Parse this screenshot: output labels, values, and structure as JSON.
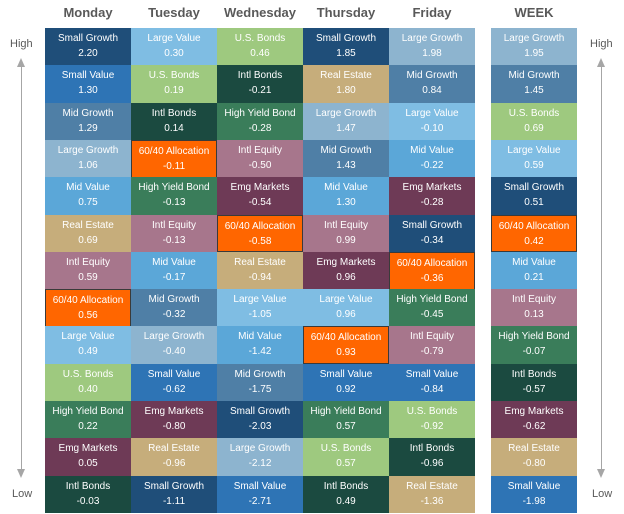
{
  "chart_data": {
    "type": "table",
    "columns": [
      "Monday",
      "Tuesday",
      "Wednesday",
      "Thursday",
      "Friday",
      "WEEK"
    ],
    "axis_labels": {
      "top": "High",
      "bottom": "Low"
    },
    "colors": {
      "Small Growth": "#1f4e79",
      "Small Value": "#2e74b5",
      "Mid Growth": "#4f7fa6",
      "Mid Value": "#5ba7d8",
      "Large Growth": "#8db4cf",
      "Large Value": "#7fbde3",
      "U.S. Bonds": "#9ec97f",
      "Intl Bonds": "#1b4a40",
      "High Yield Bond": "#3a7d5a",
      "Real Estate": "#c6ad7b",
      "Intl Equity": "#a7768c",
      "Emg Markets": "#6e3a56",
      "60/40 Allocation": "#ff6600"
    },
    "data": [
      [
        {
          "name": "Small Growth",
          "value": "2.20"
        },
        {
          "name": "Small Value",
          "value": "1.30"
        },
        {
          "name": "Mid Growth",
          "value": "1.29"
        },
        {
          "name": "Large Growth",
          "value": "1.06"
        },
        {
          "name": "Mid Value",
          "value": "0.75"
        },
        {
          "name": "Real Estate",
          "value": "0.69"
        },
        {
          "name": "Intl Equity",
          "value": "0.59"
        },
        {
          "name": "60/40 Allocation",
          "value": "0.56"
        },
        {
          "name": "Large Value",
          "value": "0.49"
        },
        {
          "name": "U.S. Bonds",
          "value": "0.40"
        },
        {
          "name": "High Yield Bond",
          "value": "0.22"
        },
        {
          "name": "Emg Markets",
          "value": "0.05"
        },
        {
          "name": "Intl Bonds",
          "value": "-0.03"
        }
      ],
      [
        {
          "name": "Large Value",
          "value": "0.30"
        },
        {
          "name": "U.S. Bonds",
          "value": "0.19"
        },
        {
          "name": "Intl Bonds",
          "value": "0.14"
        },
        {
          "name": "60/40 Allocation",
          "value": "-0.11"
        },
        {
          "name": "High Yield Bond",
          "value": "-0.13"
        },
        {
          "name": "Intl Equity",
          "value": "-0.13"
        },
        {
          "name": "Mid Value",
          "value": "-0.17"
        },
        {
          "name": "Mid Growth",
          "value": "-0.32"
        },
        {
          "name": "Large Growth",
          "value": "-0.40"
        },
        {
          "name": "Small Value",
          "value": "-0.62"
        },
        {
          "name": "Emg Markets",
          "value": "-0.80"
        },
        {
          "name": "Real Estate",
          "value": "-0.96"
        },
        {
          "name": "Small Growth",
          "value": "-1.11"
        }
      ],
      [
        {
          "name": "U.S. Bonds",
          "value": "0.46"
        },
        {
          "name": "Intl Bonds",
          "value": "-0.21"
        },
        {
          "name": "High Yield Bond",
          "value": "-0.28"
        },
        {
          "name": "Intl Equity",
          "value": "-0.50"
        },
        {
          "name": "Emg Markets",
          "value": "-0.54"
        },
        {
          "name": "60/40 Allocation",
          "value": "-0.58"
        },
        {
          "name": "Real Estate",
          "value": "-0.94"
        },
        {
          "name": "Large Value",
          "value": "-1.05"
        },
        {
          "name": "Mid Value",
          "value": "-1.42"
        },
        {
          "name": "Mid Growth",
          "value": "-1.75"
        },
        {
          "name": "Small Growth",
          "value": "-2.03"
        },
        {
          "name": "Large Growth",
          "value": "-2.12"
        },
        {
          "name": "Small Value",
          "value": "-2.71"
        }
      ],
      [
        {
          "name": "Small Growth",
          "value": "1.85"
        },
        {
          "name": "Real Estate",
          "value": "1.80"
        },
        {
          "name": "Large Growth",
          "value": "1.47"
        },
        {
          "name": "Mid Growth",
          "value": "1.43"
        },
        {
          "name": "Mid Value",
          "value": "1.30"
        },
        {
          "name": "Intl Equity",
          "value": "0.99"
        },
        {
          "name": "Emg Markets",
          "value": "0.96"
        },
        {
          "name": "Large Value",
          "value": "0.96"
        },
        {
          "name": "60/40 Allocation",
          "value": "0.93"
        },
        {
          "name": "Small Value",
          "value": "0.92"
        },
        {
          "name": "High Yield Bond",
          "value": "0.57"
        },
        {
          "name": "U.S. Bonds",
          "value": "0.57"
        },
        {
          "name": "Intl Bonds",
          "value": "0.49"
        }
      ],
      [
        {
          "name": "Large Growth",
          "value": "1.98"
        },
        {
          "name": "Mid Growth",
          "value": "0.84"
        },
        {
          "name": "Large Value",
          "value": "-0.10"
        },
        {
          "name": "Mid Value",
          "value": "-0.22"
        },
        {
          "name": "Emg Markets",
          "value": "-0.28"
        },
        {
          "name": "Small Growth",
          "value": "-0.34"
        },
        {
          "name": "60/40 Allocation",
          "value": "-0.36"
        },
        {
          "name": "High Yield Bond",
          "value": "-0.45"
        },
        {
          "name": "Intl Equity",
          "value": "-0.79"
        },
        {
          "name": "Small Value",
          "value": "-0.84"
        },
        {
          "name": "U.S. Bonds",
          "value": "-0.92"
        },
        {
          "name": "Intl Bonds",
          "value": "-0.96"
        },
        {
          "name": "Real Estate",
          "value": "-1.36"
        }
      ],
      [
        {
          "name": "Large Growth",
          "value": "1.95"
        },
        {
          "name": "Mid Growth",
          "value": "1.45"
        },
        {
          "name": "U.S. Bonds",
          "value": "0.69"
        },
        {
          "name": "Large Value",
          "value": "0.59"
        },
        {
          "name": "Small Growth",
          "value": "0.51"
        },
        {
          "name": "60/40 Allocation",
          "value": "0.42"
        },
        {
          "name": "Mid Value",
          "value": "0.21"
        },
        {
          "name": "Intl Equity",
          "value": "0.13"
        },
        {
          "name": "High Yield Bond",
          "value": "-0.07"
        },
        {
          "name": "Intl Bonds",
          "value": "-0.57"
        },
        {
          "name": "Emg Markets",
          "value": "-0.62"
        },
        {
          "name": "Real Estate",
          "value": "-0.80"
        },
        {
          "name": "Small Value",
          "value": "-1.98"
        }
      ]
    ]
  }
}
